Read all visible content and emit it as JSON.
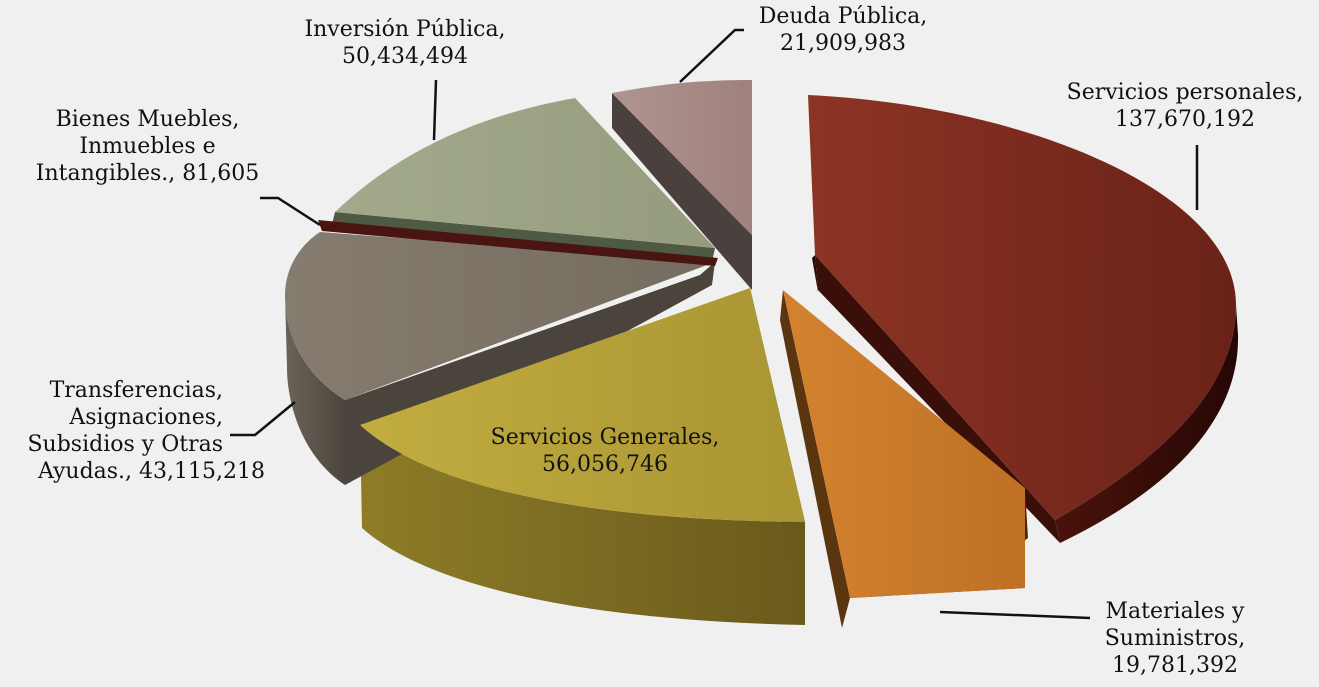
{
  "chart_data": {
    "type": "pie",
    "style": "3d-exploded",
    "title": "",
    "legend": "none",
    "slices": [
      {
        "label_lines": [
          "Servicios personales,",
          "137,670,192"
        ],
        "value": 137670192,
        "color": "#7a2a1e"
      },
      {
        "label_lines": [
          "Materiales y",
          "Suministros,",
          "19,781,392"
        ],
        "value": 19781392,
        "color": "#cc7b2a"
      },
      {
        "label_lines": [
          "Servicios Generales,",
          "56,056,746"
        ],
        "value": 56056746,
        "color": "#b8a33a"
      },
      {
        "label_lines": [
          "Transferencias,",
          "Asignaciones,",
          "Subsidios y Otras",
          "Ayudas.,  43,115,218"
        ],
        "value": 43115218,
        "color": "#7e7568"
      },
      {
        "label_lines": [
          "Bienes Muebles,",
          "Inmuebles e",
          "Intangibles.,  81,605"
        ],
        "value": 81605,
        "color": "#4a1510"
      },
      {
        "label_lines": [
          "Inversión Pública,",
          "50,434,494"
        ],
        "value": 50434494,
        "color": "#9ea586"
      },
      {
        "label_lines": [
          "Deuda Pública,",
          "21,909,983"
        ],
        "value": 21909983,
        "color": "#a98c88"
      }
    ]
  }
}
